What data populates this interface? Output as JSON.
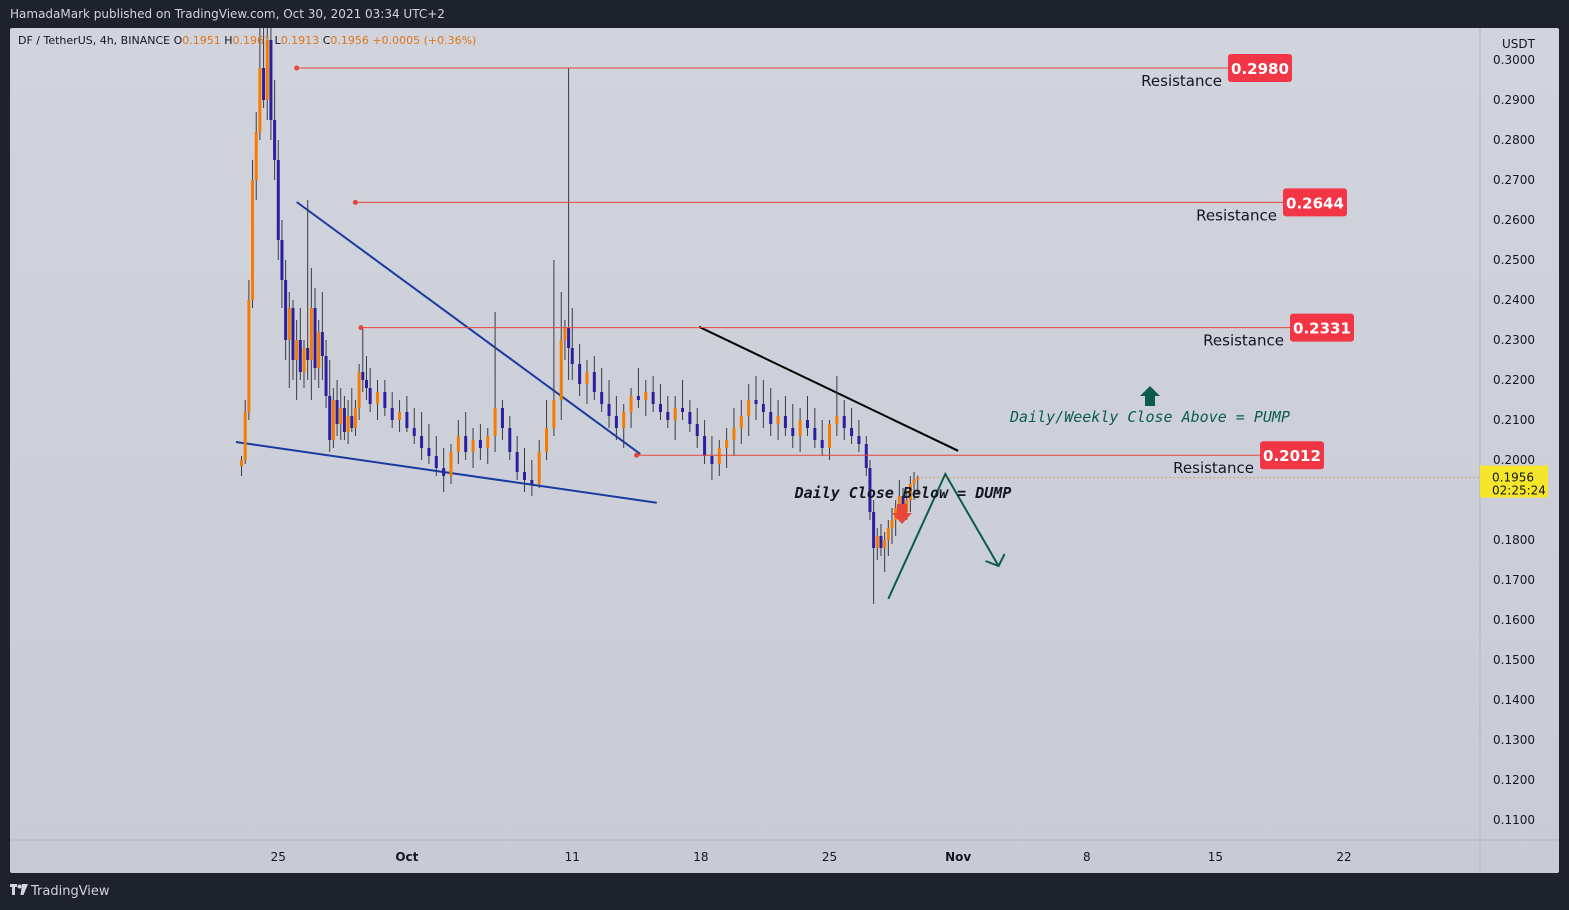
{
  "header": {
    "published_text": "HamadaMark published on TradingView.com, Oct 30, 2021 03:34 UTC+2"
  },
  "legend": {
    "symbol": "DF / TetherUS, 4h, BINANCE",
    "open_label": "O",
    "open": "0.1951",
    "high_label": "H",
    "high": "0.1961",
    "low_label": "L",
    "low": "0.1913",
    "close_label": "C",
    "close": "0.1956",
    "change": "+0.0005 (+0.36%)"
  },
  "footer": {
    "brand": "TradingView"
  },
  "colors": {
    "background": "#1e222d",
    "chart_bg": "#d1d4dc",
    "up_candle": "#f57c00",
    "down_candle": "#2a1fa0",
    "resistance_line": "#e8453c",
    "label_bg": "#f23645",
    "trend_blue": "#1a3aa0",
    "trend_black": "#000000",
    "annotation_green": "#0b5c4f",
    "price_tag": "#f5e52b"
  },
  "chart_data": {
    "type": "candlestick",
    "currency": "USDT",
    "y_ticks": [
      "0.3000",
      "0.2900",
      "0.2800",
      "0.2700",
      "0.2600",
      "0.2500",
      "0.2400",
      "0.2300",
      "0.2200",
      "0.2100",
      "0.2000",
      "0.1800",
      "0.1700",
      "0.1600",
      "0.1500",
      "0.1400",
      "0.1300",
      "0.1200",
      "0.1100"
    ],
    "x_ticks": [
      "25",
      "Oct",
      "11",
      "18",
      "25",
      "Nov",
      "8",
      "15",
      "22"
    ],
    "x_tick_values": [
      25,
      32,
      41,
      48,
      55,
      62,
      69,
      76,
      83
    ],
    "ylim": [
      0.105,
      0.308
    ],
    "xlim": [
      10.4,
      90.4
    ],
    "current_price": {
      "value": "0.1956",
      "countdown": "02:25:24"
    },
    "resistance_levels": [
      {
        "value": 0.298,
        "label": "0.2980",
        "text": "Resistance",
        "from_day": 26
      },
      {
        "value": 0.2644,
        "label": "0.2644",
        "text": "Resistance",
        "from_day": 29.2
      },
      {
        "value": 0.2331,
        "label": "0.2331",
        "text": "Resistance",
        "from_day": 29.5
      },
      {
        "value": 0.2012,
        "label": "0.2012",
        "text": "Resistance",
        "from_day": 44.5
      }
    ],
    "trendlines": [
      {
        "name": "falling-wedge-upper",
        "color": "blue",
        "from": [
          26.0,
          0.2645
        ],
        "to": [
          44.7,
          0.2015
        ]
      },
      {
        "name": "falling-wedge-lower",
        "color": "blue",
        "from": [
          22.7,
          0.2045
        ],
        "to": [
          45.6,
          0.1893
        ]
      },
      {
        "name": "descending-resistance",
        "color": "black",
        "from": [
          47.9,
          0.2333
        ],
        "to": [
          62.0,
          0.2023
        ]
      }
    ],
    "projection": {
      "points": [
        [
          58.2,
          0.1653
        ],
        [
          61.3,
          0.1965
        ],
        [
          64.2,
          0.1735
        ]
      ]
    },
    "annotations": [
      {
        "text": "Daily/Weekly Close Above = PUMP",
        "arrow": "up"
      },
      {
        "text": "Daily Close Below = DUMP",
        "arrow": "down"
      }
    ],
    "candles": [
      [
        23.0,
        0.1985,
        0.201,
        0.196,
        0.2
      ],
      [
        23.2,
        0.2,
        0.215,
        0.199,
        0.212
      ],
      [
        23.4,
        0.212,
        0.245,
        0.21,
        0.24
      ],
      [
        23.6,
        0.24,
        0.275,
        0.238,
        0.27
      ],
      [
        23.8,
        0.27,
        0.287,
        0.265,
        0.282
      ],
      [
        24.0,
        0.282,
        0.308,
        0.28,
        0.298
      ],
      [
        24.2,
        0.298,
        0.308,
        0.288,
        0.29
      ],
      [
        24.4,
        0.29,
        0.308,
        0.285,
        0.305
      ],
      [
        24.6,
        0.305,
        0.308,
        0.28,
        0.285
      ],
      [
        24.8,
        0.285,
        0.295,
        0.27,
        0.275
      ],
      [
        25.0,
        0.275,
        0.28,
        0.25,
        0.255
      ],
      [
        25.2,
        0.255,
        0.26,
        0.238,
        0.245
      ],
      [
        25.4,
        0.245,
        0.25,
        0.225,
        0.23
      ],
      [
        25.6,
        0.23,
        0.242,
        0.218,
        0.238
      ],
      [
        25.8,
        0.238,
        0.24,
        0.22,
        0.225
      ],
      [
        26.0,
        0.225,
        0.235,
        0.215,
        0.23
      ],
      [
        26.2,
        0.23,
        0.238,
        0.22,
        0.222
      ],
      [
        26.4,
        0.222,
        0.23,
        0.218,
        0.228
      ],
      [
        26.6,
        0.228,
        0.265,
        0.22,
        0.225
      ],
      [
        26.8,
        0.225,
        0.248,
        0.215,
        0.238
      ],
      [
        27.0,
        0.238,
        0.243,
        0.22,
        0.223
      ],
      [
        27.2,
        0.223,
        0.235,
        0.218,
        0.232
      ],
      [
        27.4,
        0.232,
        0.242,
        0.22,
        0.226
      ],
      [
        27.6,
        0.226,
        0.23,
        0.213,
        0.216
      ],
      [
        27.8,
        0.216,
        0.225,
        0.202,
        0.205
      ],
      [
        28.0,
        0.205,
        0.218,
        0.203,
        0.215
      ],
      [
        28.2,
        0.215,
        0.22,
        0.206,
        0.209
      ],
      [
        28.4,
        0.209,
        0.218,
        0.205,
        0.213
      ],
      [
        28.6,
        0.213,
        0.216,
        0.205,
        0.207
      ],
      [
        28.8,
        0.207,
        0.215,
        0.204,
        0.211
      ],
      [
        29.0,
        0.211,
        0.218,
        0.207,
        0.208
      ],
      [
        29.2,
        0.208,
        0.215,
        0.206,
        0.213
      ],
      [
        29.4,
        0.213,
        0.224,
        0.21,
        0.222
      ],
      [
        29.6,
        0.222,
        0.233,
        0.217,
        0.22
      ],
      [
        29.8,
        0.22,
        0.226,
        0.215,
        0.218
      ],
      [
        30.0,
        0.218,
        0.223,
        0.212,
        0.214
      ],
      [
        30.4,
        0.214,
        0.22,
        0.21,
        0.217
      ],
      [
        30.8,
        0.217,
        0.22,
        0.211,
        0.213
      ],
      [
        31.2,
        0.213,
        0.217,
        0.208,
        0.21
      ],
      [
        31.6,
        0.21,
        0.215,
        0.207,
        0.212
      ],
      [
        32.0,
        0.212,
        0.216,
        0.207,
        0.208
      ],
      [
        32.4,
        0.208,
        0.213,
        0.204,
        0.206
      ],
      [
        32.8,
        0.206,
        0.212,
        0.2,
        0.203
      ],
      [
        33.2,
        0.203,
        0.209,
        0.199,
        0.201
      ],
      [
        33.6,
        0.201,
        0.206,
        0.196,
        0.198
      ],
      [
        34.0,
        0.198,
        0.203,
        0.192,
        0.196
      ],
      [
        34.4,
        0.196,
        0.204,
        0.194,
        0.202
      ],
      [
        34.8,
        0.202,
        0.21,
        0.199,
        0.206
      ],
      [
        35.2,
        0.206,
        0.212,
        0.2,
        0.202
      ],
      [
        35.6,
        0.202,
        0.208,
        0.198,
        0.205
      ],
      [
        36.0,
        0.205,
        0.209,
        0.2,
        0.203
      ],
      [
        36.4,
        0.203,
        0.208,
        0.199,
        0.206
      ],
      [
        36.8,
        0.206,
        0.237,
        0.202,
        0.213
      ],
      [
        37.2,
        0.213,
        0.215,
        0.205,
        0.208
      ],
      [
        37.6,
        0.208,
        0.211,
        0.2,
        0.202
      ],
      [
        38.0,
        0.202,
        0.206,
        0.195,
        0.197
      ],
      [
        38.4,
        0.197,
        0.203,
        0.192,
        0.195
      ],
      [
        38.8,
        0.195,
        0.2,
        0.191,
        0.194
      ],
      [
        39.2,
        0.194,
        0.205,
        0.193,
        0.202
      ],
      [
        39.6,
        0.202,
        0.215,
        0.2,
        0.208
      ],
      [
        40.0,
        0.208,
        0.25,
        0.206,
        0.215
      ],
      [
        40.4,
        0.215,
        0.242,
        0.21,
        0.23
      ],
      [
        40.6,
        0.23,
        0.235,
        0.225,
        0.233
      ],
      [
        40.8,
        0.233,
        0.298,
        0.22,
        0.228
      ],
      [
        41.0,
        0.228,
        0.238,
        0.22,
        0.224
      ],
      [
        41.4,
        0.224,
        0.229,
        0.216,
        0.219
      ],
      [
        41.8,
        0.219,
        0.225,
        0.214,
        0.222
      ],
      [
        42.2,
        0.222,
        0.226,
        0.215,
        0.217
      ],
      [
        42.6,
        0.217,
        0.223,
        0.212,
        0.214
      ],
      [
        43.0,
        0.214,
        0.22,
        0.208,
        0.211
      ],
      [
        43.4,
        0.211,
        0.216,
        0.205,
        0.208
      ],
      [
        43.8,
        0.208,
        0.214,
        0.203,
        0.212
      ],
      [
        44.2,
        0.212,
        0.218,
        0.208,
        0.216
      ],
      [
        44.6,
        0.216,
        0.223,
        0.213,
        0.215
      ],
      [
        45.0,
        0.215,
        0.22,
        0.211,
        0.217
      ],
      [
        45.4,
        0.217,
        0.221,
        0.212,
        0.214
      ],
      [
        45.8,
        0.214,
        0.219,
        0.21,
        0.212
      ],
      [
        46.2,
        0.212,
        0.216,
        0.208,
        0.21
      ],
      [
        46.6,
        0.21,
        0.216,
        0.205,
        0.213
      ],
      [
        47.0,
        0.213,
        0.22,
        0.21,
        0.212
      ],
      [
        47.4,
        0.212,
        0.215,
        0.207,
        0.209
      ],
      [
        47.8,
        0.209,
        0.213,
        0.203,
        0.206
      ],
      [
        48.2,
        0.206,
        0.21,
        0.199,
        0.201
      ],
      [
        48.6,
        0.201,
        0.206,
        0.195,
        0.199
      ],
      [
        49.0,
        0.199,
        0.205,
        0.196,
        0.203
      ],
      [
        49.4,
        0.203,
        0.208,
        0.198,
        0.205
      ],
      [
        49.8,
        0.205,
        0.213,
        0.201,
        0.208
      ],
      [
        50.2,
        0.208,
        0.215,
        0.204,
        0.211
      ],
      [
        50.6,
        0.211,
        0.219,
        0.206,
        0.215
      ],
      [
        51.0,
        0.215,
        0.221,
        0.21,
        0.214
      ],
      [
        51.4,
        0.214,
        0.22,
        0.208,
        0.212
      ],
      [
        51.8,
        0.212,
        0.218,
        0.206,
        0.209
      ],
      [
        52.2,
        0.209,
        0.215,
        0.205,
        0.211
      ],
      [
        52.6,
        0.211,
        0.216,
        0.206,
        0.208
      ],
      [
        53.0,
        0.208,
        0.214,
        0.203,
        0.206
      ],
      [
        53.4,
        0.206,
        0.213,
        0.202,
        0.21
      ],
      [
        53.8,
        0.21,
        0.216,
        0.206,
        0.208
      ],
      [
        54.2,
        0.208,
        0.213,
        0.203,
        0.205
      ],
      [
        54.6,
        0.205,
        0.21,
        0.201,
        0.203
      ],
      [
        55.0,
        0.203,
        0.21,
        0.2,
        0.209
      ],
      [
        55.4,
        0.209,
        0.221,
        0.206,
        0.211
      ],
      [
        55.8,
        0.211,
        0.215,
        0.205,
        0.208
      ],
      [
        56.2,
        0.208,
        0.213,
        0.204,
        0.206
      ],
      [
        56.6,
        0.206,
        0.21,
        0.202,
        0.204
      ],
      [
        57.0,
        0.204,
        0.206,
        0.196,
        0.198
      ],
      [
        57.2,
        0.198,
        0.2,
        0.185,
        0.187
      ],
      [
        57.4,
        0.187,
        0.19,
        0.164,
        0.178
      ],
      [
        57.6,
        0.178,
        0.183,
        0.175,
        0.181
      ],
      [
        57.8,
        0.181,
        0.184,
        0.176,
        0.178
      ],
      [
        58.0,
        0.178,
        0.182,
        0.172,
        0.18
      ],
      [
        58.2,
        0.18,
        0.185,
        0.176,
        0.183
      ],
      [
        58.4,
        0.183,
        0.188,
        0.179,
        0.185
      ],
      [
        58.6,
        0.185,
        0.19,
        0.181,
        0.188
      ],
      [
        58.8,
        0.188,
        0.195,
        0.185,
        0.191
      ],
      [
        59.0,
        0.191,
        0.193,
        0.186,
        0.187
      ],
      [
        59.2,
        0.187,
        0.192,
        0.185,
        0.19
      ],
      [
        59.4,
        0.19,
        0.196,
        0.187,
        0.194
      ],
      [
        59.6,
        0.194,
        0.197,
        0.19,
        0.1951
      ],
      [
        59.8,
        0.1951,
        0.1961,
        0.1913,
        0.1956
      ]
    ]
  }
}
